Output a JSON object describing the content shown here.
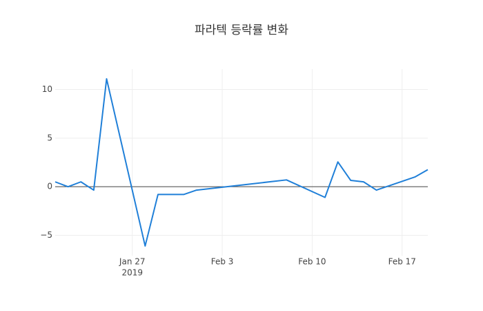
{
  "chart_data": {
    "type": "line",
    "title": "파라텍 등락률 변화",
    "x": [
      "2019-01-21",
      "2019-01-22",
      "2019-01-23",
      "2019-01-24",
      "2019-01-25",
      "2019-01-28",
      "2019-01-29",
      "2019-01-30",
      "2019-01-31",
      "2019-02-01",
      "2019-02-08",
      "2019-02-11",
      "2019-02-12",
      "2019-02-13",
      "2019-02-14",
      "2019-02-15",
      "2019-02-18",
      "2019-02-19"
    ],
    "series": [
      {
        "name": "등락률",
        "color": "#1f7fd8",
        "values": [
          0.5,
          0,
          0.5,
          -0.35,
          11.1,
          -6.1,
          -0.8,
          -0.8,
          -0.8,
          -0.35,
          0.7,
          -1.1,
          2.55,
          0.65,
          0.5,
          -0.35,
          1.0,
          1.75
        ]
      }
    ],
    "xlim": [
      "2019-01-21",
      "2019-02-19"
    ],
    "xticks": [
      {
        "value": "2019-01-27",
        "label": "Jan 27"
      },
      {
        "value": "2019-02-03",
        "label": "Feb 3"
      },
      {
        "value": "2019-02-10",
        "label": "Feb 10"
      },
      {
        "value": "2019-02-17",
        "label": "Feb 17"
      }
    ],
    "x_year_label": "2019",
    "ylim": [
      -7.1,
      12.1
    ],
    "yticks": [
      {
        "value": -5,
        "label": "−5"
      },
      0,
      5,
      10
    ],
    "grid": true,
    "zeroline": true
  }
}
